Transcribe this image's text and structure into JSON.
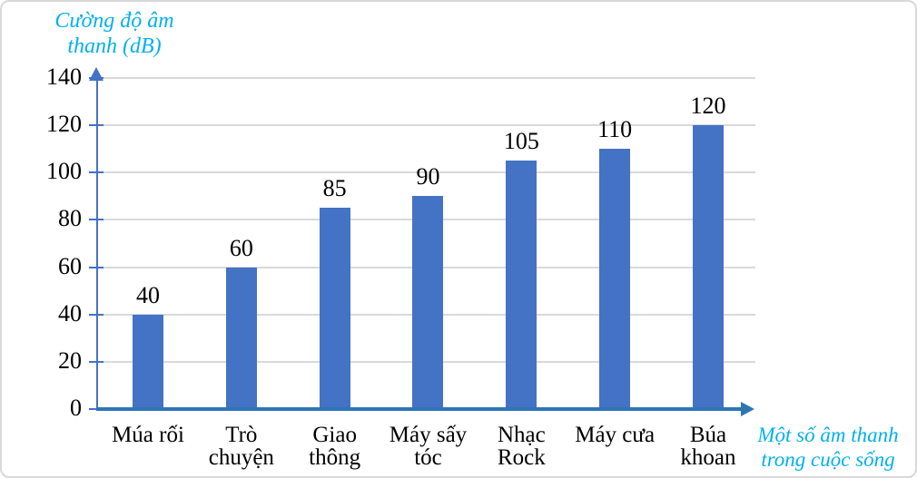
{
  "chart_data": {
    "type": "bar",
    "title": "",
    "categories": [
      "Múa rối",
      "Trò chuyện",
      "Giao thông",
      "Máy sấy tóc",
      "Nhạc Rock",
      "Máy cưa",
      "Búa khoan"
    ],
    "categories_wrapped": [
      "Múa rối",
      "Trò\nchuyện",
      "Giao\nthông",
      "Máy sấy\ntóc",
      "Nhạc\nRock",
      "Máy cưa",
      "Búa\nkhoan"
    ],
    "values": [
      40,
      60,
      85,
      90,
      105,
      110,
      120
    ],
    "value_labels": [
      "40",
      "60",
      "85",
      "90",
      "105",
      "110",
      "120"
    ],
    "ylabel": "Cường độ âm thanh (dB)",
    "xlabel": "Một số âm thanh trong cuộc sống",
    "ylim": [
      0,
      140
    ],
    "yticks": [
      0,
      20,
      40,
      60,
      80,
      100,
      120,
      140
    ],
    "ytick_step": 20,
    "grid": true,
    "legend": false
  },
  "y_axis_title": {
    "line1": "Cường độ âm",
    "line2": "thanh (dB)"
  },
  "x_axis_title": {
    "line1": "Một số âm thanh",
    "line2": "trong cuộc sống"
  },
  "colors": {
    "bar": "#4472C4",
    "y_axis": "#4472C4",
    "x_axis": "#2E75B6",
    "gridline": "#D9D9D9",
    "axis_title_text": "#00B0F0",
    "label_text": "#000000",
    "background": "#FFFFFF",
    "frame_border": "#D9D9D9"
  }
}
